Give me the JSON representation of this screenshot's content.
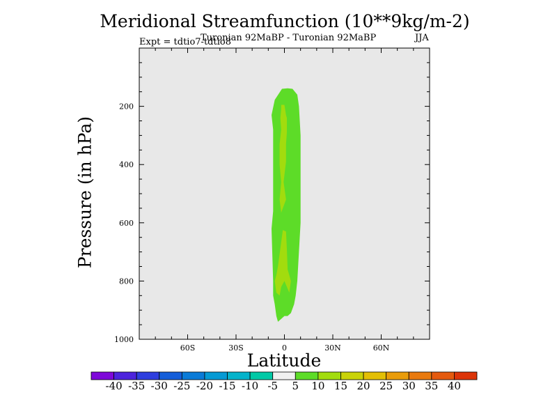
{
  "chart_data": {
    "type": "contour",
    "title": "Meridional Streamfunction (10**9kg/m-2)",
    "subtitle": "Turonian  92MaBP - Turonian  92MaBP",
    "expt": "Expt = tdtio7-tdtio8",
    "season": "JJA",
    "xlabel": "Latitude",
    "ylabel": "Pressure (in hPa)",
    "xlim": [
      -90,
      90
    ],
    "ylim": [
      1000,
      0
    ],
    "xticks": [
      {
        "value": -60,
        "label": "60S"
      },
      {
        "value": -30,
        "label": "30S"
      },
      {
        "value": 0,
        "label": "0"
      },
      {
        "value": 30,
        "label": "30N"
      },
      {
        "value": 60,
        "label": "60N"
      }
    ],
    "yticks": [
      {
        "value": 200,
        "label": "200"
      },
      {
        "value": 400,
        "label": "400"
      },
      {
        "value": 600,
        "label": "600"
      },
      {
        "value": 800,
        "label": "800"
      },
      {
        "value": 1000,
        "label": "1000"
      }
    ],
    "background_color": "#e8e8e8",
    "contour_regions": [
      {
        "level": "5 to 10",
        "color": "#5ddc28",
        "outline": [
          [
            -1.5,
            140
          ],
          [
            -6,
            178
          ],
          [
            -8,
            230
          ],
          [
            -7,
            280
          ],
          [
            -7,
            560
          ],
          [
            -8,
            620
          ],
          [
            -7,
            800
          ],
          [
            -7,
            850
          ],
          [
            -6,
            880
          ],
          [
            -5,
            920
          ],
          [
            -4,
            940
          ],
          [
            -2,
            930
          ],
          [
            0,
            920
          ],
          [
            2,
            920
          ],
          [
            4,
            910
          ],
          [
            6,
            880
          ],
          [
            7,
            850
          ],
          [
            8,
            800
          ],
          [
            10,
            600
          ],
          [
            10,
            300
          ],
          [
            9,
            200
          ],
          [
            8,
            160
          ],
          [
            5,
            140
          ],
          [
            2,
            138
          ]
        ]
      },
      {
        "level": "10 to 15",
        "color": "#a2dc0e",
        "outline": [
          [
            -2,
            195
          ],
          [
            0,
            195
          ],
          [
            1,
            230
          ],
          [
            1.5,
            240
          ],
          [
            1.5,
            290
          ],
          [
            1,
            330
          ],
          [
            1,
            390
          ],
          [
            -0.5,
            460
          ],
          [
            1,
            520
          ],
          [
            -2,
            565
          ],
          [
            -3,
            520
          ],
          [
            -2,
            460
          ],
          [
            -3,
            400
          ],
          [
            -3,
            330
          ],
          [
            -2,
            280
          ],
          [
            -2.5,
            240
          ],
          [
            -2,
            210
          ]
        ]
      },
      {
        "level": "10 to 15",
        "color": "#a2dc0e",
        "outline": [
          [
            -1,
            625
          ],
          [
            1,
            630
          ],
          [
            1.5,
            690
          ],
          [
            2,
            760
          ],
          [
            3,
            780
          ],
          [
            4,
            800
          ],
          [
            3,
            840
          ],
          [
            0,
            800
          ],
          [
            -2,
            820
          ],
          [
            -3,
            850
          ],
          [
            -5,
            840
          ],
          [
            -6,
            800
          ],
          [
            -5,
            780
          ],
          [
            -4,
            750
          ]
        ]
      }
    ],
    "colorbar": {
      "labels": [
        "-40",
        "-35",
        "-30",
        "-25",
        "-20",
        "-15",
        "-10",
        "-5",
        "5",
        "10",
        "15",
        "20",
        "25",
        "30",
        "35",
        "40"
      ],
      "colors": [
        "#7e08d9",
        "#4d24dc",
        "#2e3ede",
        "#145ed9",
        "#0a7bd7",
        "#059ad4",
        "#04b3cb",
        "#00c9a6",
        "#f0f0f0",
        "#5ddc28",
        "#a2dc0e",
        "#c9d308",
        "#e3bf05",
        "#e99c0a",
        "#e97a0e",
        "#e45a0e",
        "#dc3408"
      ]
    }
  }
}
